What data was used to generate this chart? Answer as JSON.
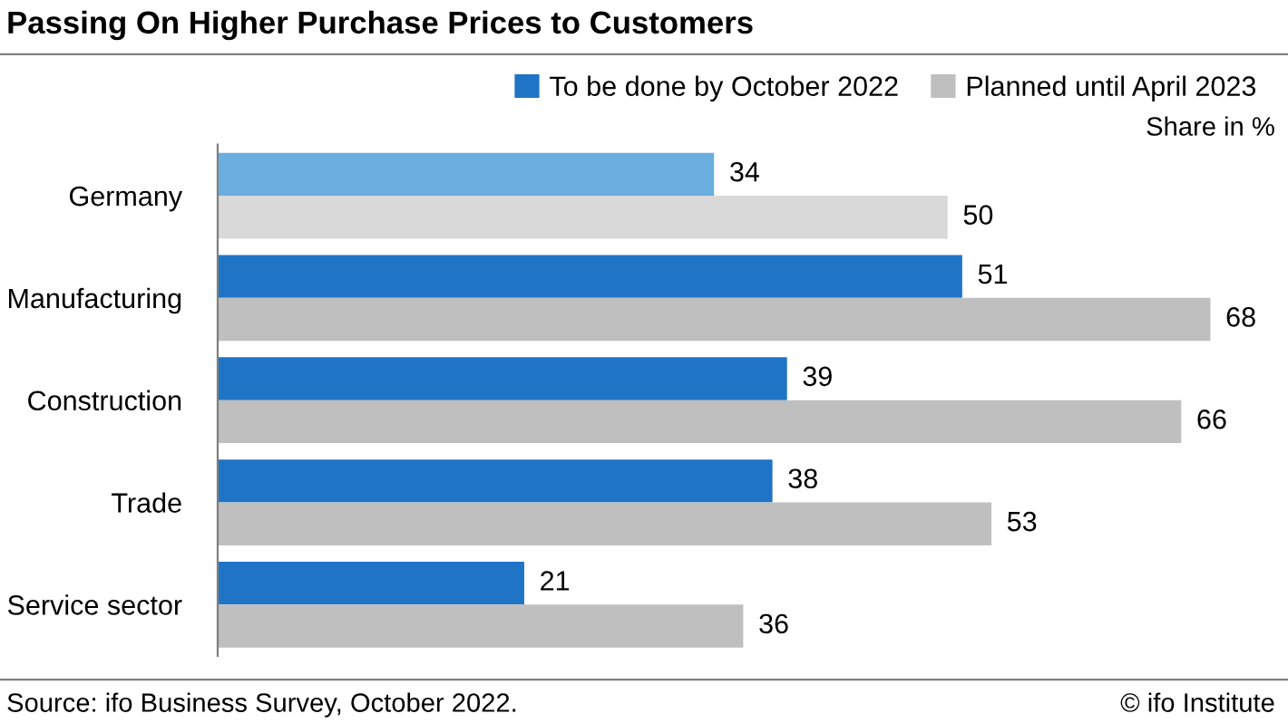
{
  "chart_data": {
    "type": "bar",
    "orientation": "horizontal",
    "title": "Passing On Higher Purchase Prices to Customers",
    "categories": [
      "Germany",
      "Manufacturing",
      "Construction",
      "Trade",
      "Service sector"
    ],
    "series": [
      {
        "name": "To be done by October 2022",
        "color": "#1f74c6",
        "colors": [
          "#6aaee0",
          "#1f74c6",
          "#1f74c6",
          "#1f74c6",
          "#1f74c6"
        ],
        "values": [
          34,
          51,
          39,
          38,
          21
        ]
      },
      {
        "name": "Planned until April 2023",
        "color": "#bfbfbf",
        "colors": [
          "#d9d9d9",
          "#bfbfbf",
          "#bfbfbf",
          "#bfbfbf",
          "#bfbfbf"
        ],
        "values": [
          50,
          68,
          66,
          53,
          36
        ]
      }
    ],
    "data_labels": true,
    "legend": "top right",
    "grid": false,
    "tick_labels": "y",
    "annotations": [
      "Share in %",
      "Source: ifo Business Survey, October 2022.",
      "© ifo Institute"
    ]
  }
}
